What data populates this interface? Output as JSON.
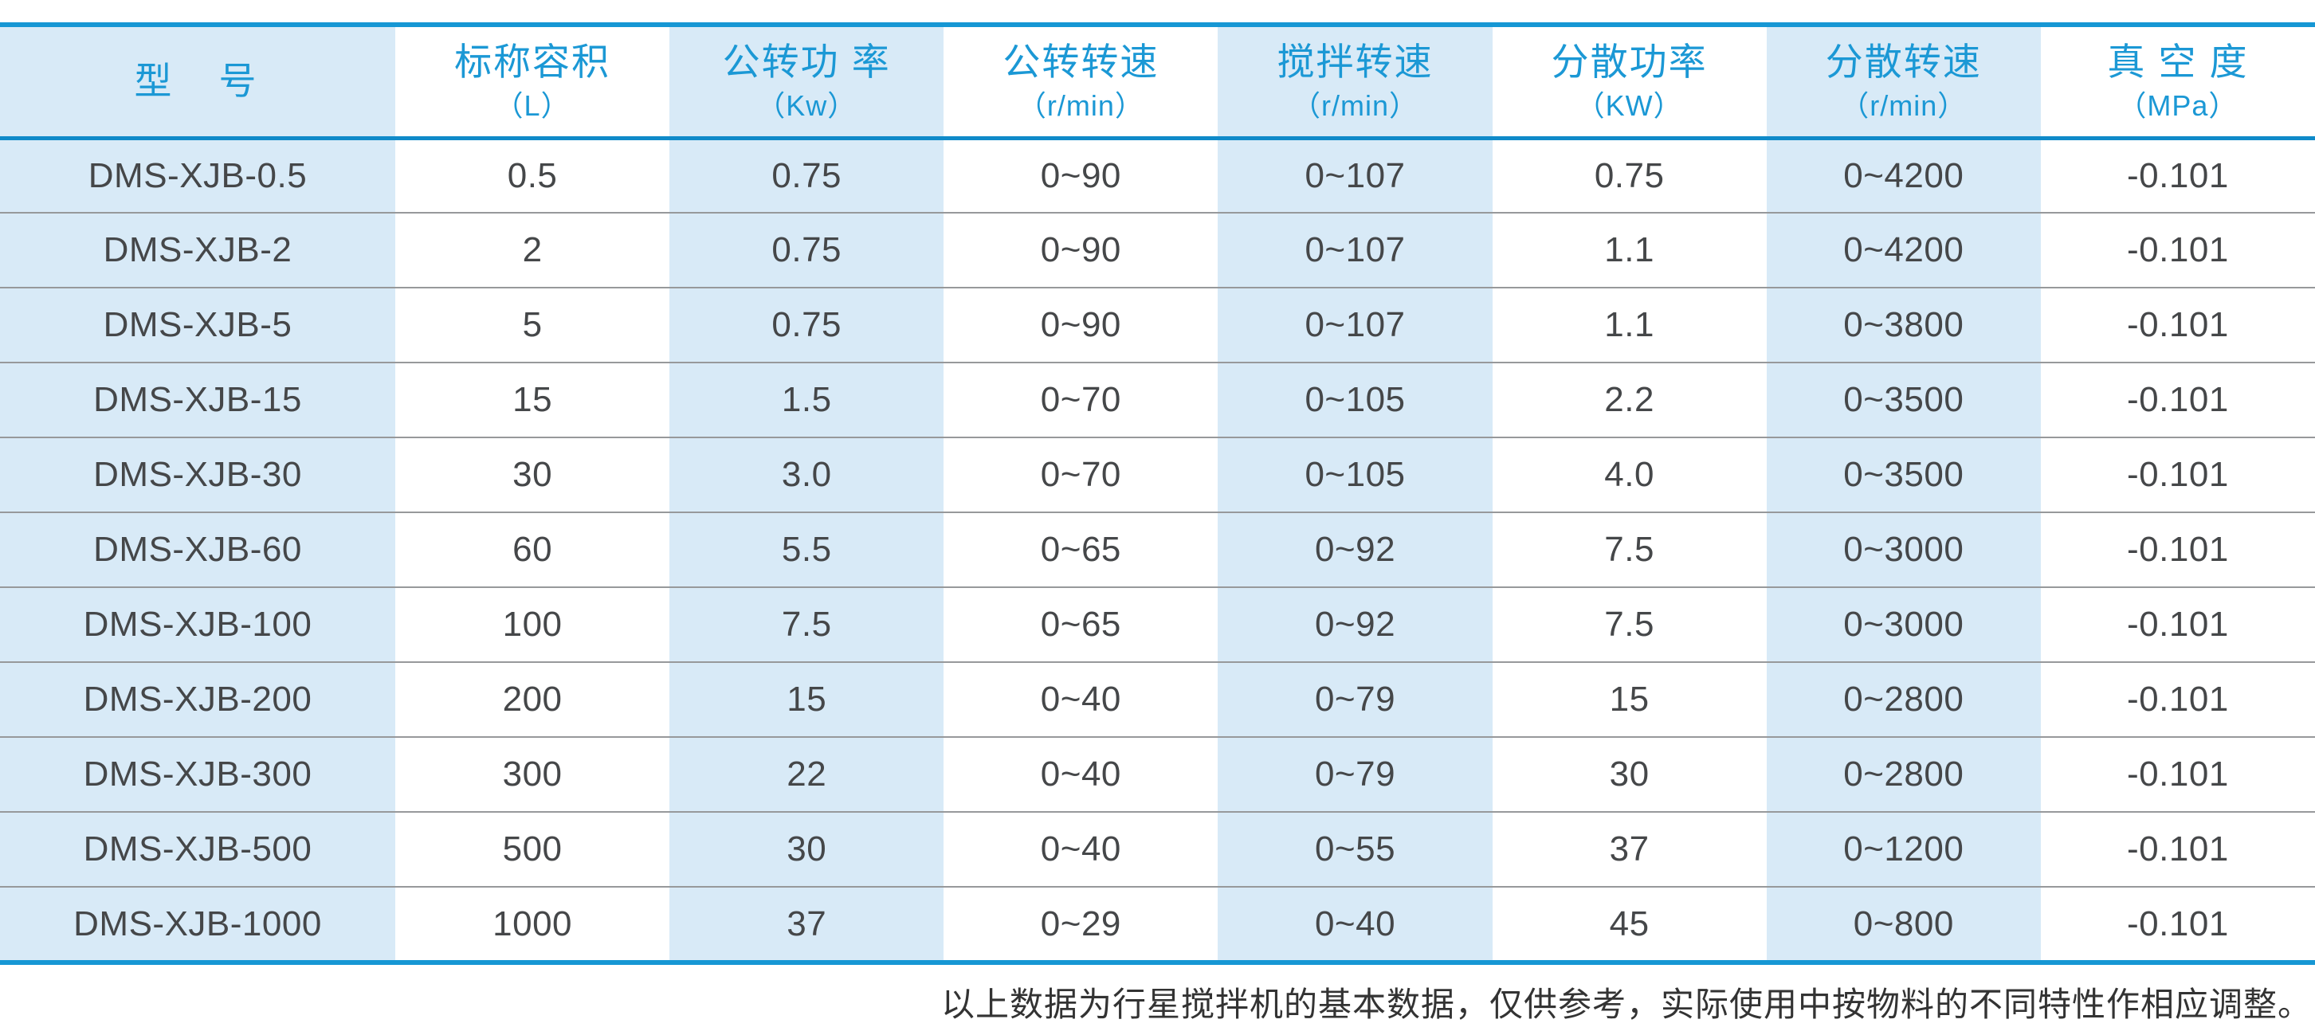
{
  "colors": {
    "accent_bar": "#1697d4",
    "header_separator": "#0f8ac9",
    "header_text": "#1b98d5",
    "striped_column_bg": "#d8eaf7",
    "body_text": "#454749",
    "row_separator": "#97999b",
    "footnote_text": "#333333"
  },
  "table": {
    "columns": [
      {
        "label": "型　号",
        "unit": ""
      },
      {
        "label": "标称容积",
        "unit": "（L）"
      },
      {
        "label": "公转功 率",
        "unit": "（Kw）"
      },
      {
        "label": "公转转速",
        "unit": "（r/min）"
      },
      {
        "label": "搅拌转速",
        "unit": "（r/min）"
      },
      {
        "label": "分散功率",
        "unit": "（KW）"
      },
      {
        "label": "分散转速",
        "unit": "（r/min）"
      },
      {
        "label": "真 空 度",
        "unit": "（MPa）"
      }
    ],
    "rows": [
      [
        "DMS-XJB-0.5",
        "0.5",
        "0.75",
        "0~90",
        "0~107",
        "0.75",
        "0~4200",
        "-0.101"
      ],
      [
        "DMS-XJB-2",
        "2",
        "0.75",
        "0~90",
        "0~107",
        "1.1",
        "0~4200",
        "-0.101"
      ],
      [
        "DMS-XJB-5",
        "5",
        "0.75",
        "0~90",
        "0~107",
        "1.1",
        "0~3800",
        "-0.101"
      ],
      [
        "DMS-XJB-15",
        "15",
        "1.5",
        "0~70",
        "0~105",
        "2.2",
        "0~3500",
        "-0.101"
      ],
      [
        "DMS-XJB-30",
        "30",
        "3.0",
        "0~70",
        "0~105",
        "4.0",
        "0~3500",
        "-0.101"
      ],
      [
        "DMS-XJB-60",
        "60",
        "5.5",
        "0~65",
        "0~92",
        "7.5",
        "0~3000",
        "-0.101"
      ],
      [
        "DMS-XJB-100",
        "100",
        "7.5",
        "0~65",
        "0~92",
        "7.5",
        "0~3000",
        "-0.101"
      ],
      [
        "DMS-XJB-200",
        "200",
        "15",
        "0~40",
        "0~79",
        "15",
        "0~2800",
        "-0.101"
      ],
      [
        "DMS-XJB-300",
        "300",
        "22",
        "0~40",
        "0~79",
        "30",
        "0~2800",
        "-0.101"
      ],
      [
        "DMS-XJB-500",
        "500",
        "30",
        "0~40",
        "0~55",
        "37",
        "0~1200",
        "-0.101"
      ],
      [
        "DMS-XJB-1000",
        "1000",
        "37",
        "0~29",
        "0~40",
        "45",
        "0~800",
        "-0.101"
      ]
    ]
  },
  "footnote": "以上数据为行星搅拌机的基本数据，仅供参考，实际使用中按物料的不同特性作相应调整。"
}
